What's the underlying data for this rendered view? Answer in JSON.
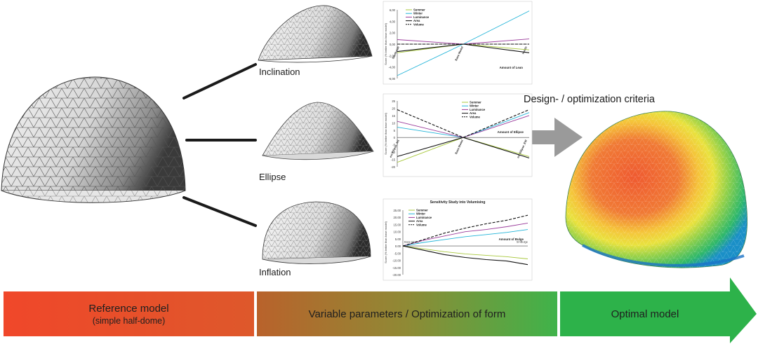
{
  "labels": {
    "inclination": "Inclination",
    "ellipse": "Ellipse",
    "inflation": "Inflation",
    "criteria": "Design- / optimization criteria"
  },
  "bands": {
    "reference": "Reference model",
    "reference_sub": "(simple half-dome)",
    "variable": "Variable parameters / Optimization of form",
    "optimal": "Optimal model"
  },
  "colors": {
    "summer": "#a8c83c",
    "winter": "#22b4d8",
    "luminance": "#9a3a9a",
    "area": "#111111",
    "volume": "#111111",
    "band_red": "#ef4528",
    "band_green": "#2db24a",
    "arrow_gray": "#9a9a9a"
  },
  "chart_data": [
    {
      "type": "line",
      "name": "inclination",
      "ylabel": "Score (% better than base model)",
      "ylim": [
        -6,
        6
      ],
      "yticks": [
        "6,00",
        "4,00",
        "2,00",
        "0,00",
        "-2,00",
        "-4,00",
        "-6,00"
      ],
      "x_labels": [
        "Southside",
        "Base Model",
        "Inside"
      ],
      "x_title": "Amount of Lean",
      "x": [
        -1,
        0,
        1
      ],
      "series": [
        {
          "name": "Summer",
          "values": [
            -1.5,
            0,
            -1.0
          ]
        },
        {
          "name": "Winter",
          "values": [
            -5.5,
            0,
            5.8
          ]
        },
        {
          "name": "Luminance",
          "values": [
            0.8,
            0,
            0.9
          ]
        },
        {
          "name": "Area",
          "values": [
            -1.3,
            0,
            -1.5
          ]
        },
        {
          "name": "Volume",
          "values": [
            0,
            0,
            0
          ]
        }
      ]
    },
    {
      "type": "line",
      "name": "ellipse",
      "ylabel": "Score (% better than base model)",
      "ylim": [
        -20,
        25
      ],
      "yticks": [
        "25",
        "20",
        "15",
        "10",
        "5",
        "0",
        "-5",
        "-10",
        "-15",
        "-20"
      ],
      "x_labels": [
        "ext Ellipse_NS",
        "Base Model",
        "ext Ellipse_EW"
      ],
      "x_title": "Amount of Ellipse",
      "x": [
        -1,
        0,
        1
      ],
      "series": [
        {
          "name": "Summer",
          "values": [
            -17,
            0,
            -13
          ]
        },
        {
          "name": "Winter",
          "values": [
            7,
            0,
            17
          ]
        },
        {
          "name": "Luminance",
          "values": [
            11,
            0,
            15
          ]
        },
        {
          "name": "Area",
          "values": [
            -13,
            0,
            -14
          ]
        },
        {
          "name": "Volume",
          "values": [
            19,
            0,
            19
          ]
        }
      ]
    },
    {
      "type": "line",
      "name": "inflation",
      "title": "Sensitivity Study into Volumising",
      "ylabel": "Score (% better than base model)",
      "ylim": [
        -20,
        25
      ],
      "yticks": [
        "25.00",
        "20.00",
        "15.00",
        "10.00",
        "5.00",
        "0.00",
        "-5.00",
        "-10.00",
        "-15.00",
        "-20.00"
      ],
      "x_labels": [
        "Base Model",
        "SmBulge"
      ],
      "x_title": "Amount of Bulge",
      "x": [
        0,
        1,
        2,
        3,
        4,
        5,
        6
      ],
      "series": [
        {
          "name": "Summer",
          "values": [
            0,
            -2,
            -4,
            -5.5,
            -6.5,
            -7.5,
            -9
          ]
        },
        {
          "name": "Winter",
          "values": [
            0,
            2.5,
            4.5,
            6.5,
            8,
            9.5,
            11.5
          ]
        },
        {
          "name": "Luminance",
          "values": [
            0,
            4,
            7,
            10,
            11.5,
            13.5,
            16
          ]
        },
        {
          "name": "Area",
          "values": [
            0,
            -3,
            -6,
            -8,
            -9.5,
            -10.5,
            -13
          ]
        },
        {
          "name": "Volume",
          "values": [
            0,
            4.5,
            9,
            12.5,
            15.5,
            18,
            21.5
          ]
        }
      ]
    }
  ]
}
